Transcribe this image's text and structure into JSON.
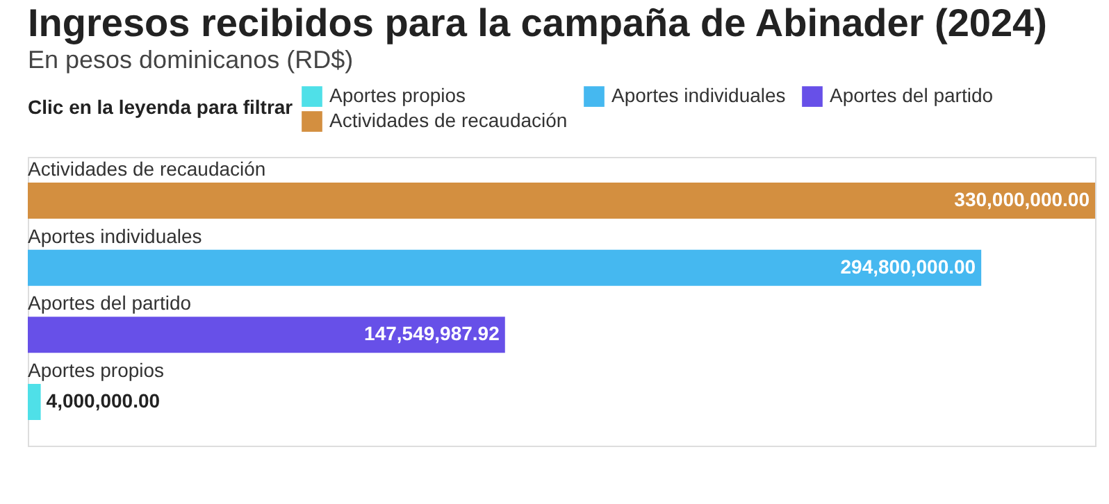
{
  "chart_data": {
    "type": "bar",
    "orientation": "horizontal",
    "title": "Ingresos recibidos para la campaña de Abinader (2024)",
    "subtitle": "En pesos dominicanos (RD$)",
    "legend_title": "Clic en la leyenda para filtrar",
    "legend": "top",
    "categories": [
      "Actividades de recaudación",
      "Aportes individuales",
      "Aportes del partido",
      "Aportes propios"
    ],
    "series": [
      {
        "name": "Aportes propios",
        "color": "#4fe0e8",
        "values": [
          null,
          null,
          null,
          4000000.0
        ],
        "value_labels": [
          null,
          null,
          null,
          "4,000,000.00"
        ]
      },
      {
        "name": "Aportes individuales",
        "color": "#45b8f0",
        "values": [
          null,
          294800000.0,
          null,
          null
        ],
        "value_labels": [
          null,
          "294,800,000.00",
          null,
          null
        ]
      },
      {
        "name": "Aportes del partido",
        "color": "#6750e8",
        "values": [
          null,
          null,
          147549987.92,
          null
        ],
        "value_labels": [
          null,
          null,
          "147,549,987.92",
          null
        ]
      },
      {
        "name": "Actividades de recaudación",
        "color": "#d38f40",
        "values": [
          330000000.0,
          null,
          null,
          null
        ],
        "value_labels": [
          "330,000,000.00",
          null,
          null,
          null
        ]
      }
    ],
    "grid": false
  }
}
